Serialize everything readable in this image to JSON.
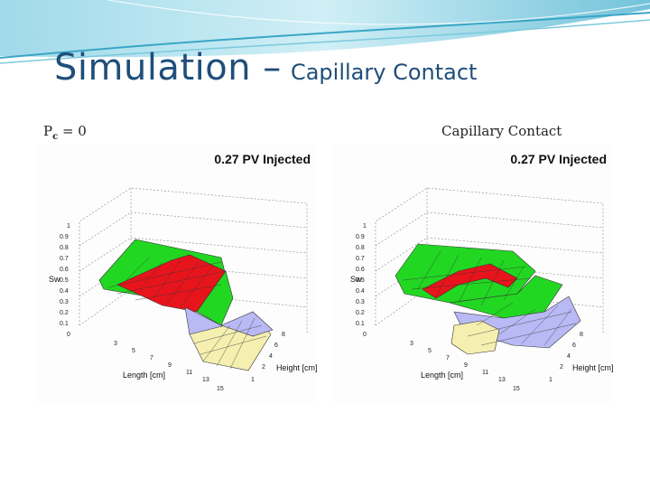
{
  "slide": {
    "title_main": "Simulation –",
    "title_sub": "Capillary Contact",
    "caption_left": "Pc = 0",
    "caption_left_base": "P",
    "caption_left_sub": "c",
    "caption_left_rest": " = 0",
    "caption_right": "Capillary Contact"
  },
  "colors": {
    "title": "#1f4e79",
    "saturation_high": "#e8141c",
    "saturation_mid": "#22d722",
    "saturation_low": "#b9b9f5",
    "saturation_very_low": "#f5efb0"
  },
  "chart_data": [
    {
      "type": "surface",
      "title": "0.27 PV Injected",
      "zlabel": "Sw",
      "xlabel": "Length [cm]",
      "ylabel": "Height [cm]",
      "z_ticks": [
        "1",
        "0.9",
        "0.8",
        "0.7",
        "0.6",
        "0.5",
        "0.4",
        "0.3",
        "0.2",
        "0.1",
        "0"
      ],
      "length_ticks": [
        "3",
        "5",
        "7",
        "9",
        "11",
        "13",
        "15"
      ],
      "height_ticks": [
        "1",
        "2",
        "4",
        "6",
        "8"
      ]
    },
    {
      "type": "surface",
      "title": "0.27 PV Injected",
      "zlabel": "Sw",
      "xlabel": "Length [cm]",
      "ylabel": "Height [cm]",
      "z_ticks": [
        "1",
        "0.9",
        "0.8",
        "0.7",
        "0.6",
        "0.5",
        "0.4",
        "0.3",
        "0.2",
        "0.1",
        "0"
      ],
      "length_ticks": [
        "3",
        "5",
        "7",
        "9",
        "11",
        "13",
        "15"
      ],
      "height_ticks": [
        "1",
        "2",
        "4",
        "6",
        "8"
      ]
    }
  ]
}
